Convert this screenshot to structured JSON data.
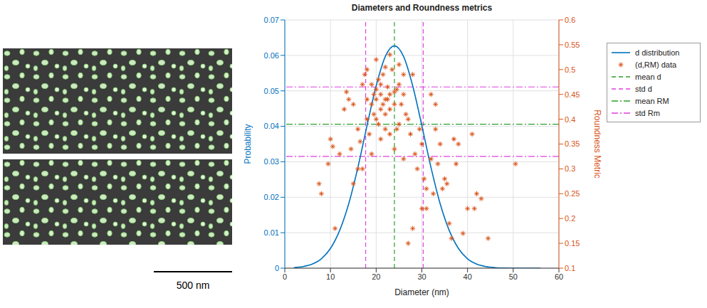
{
  "scale_bar_label": "500 nm",
  "chart_data": {
    "type": "line",
    "title": "Diameters and Roundness metrics",
    "x_label": "Diameter (nm)",
    "y_label": "Probability",
    "y2_label": "Roundness Metric",
    "xlim": [
      0,
      60
    ],
    "xticks": [
      0,
      10,
      20,
      30,
      40,
      50,
      60
    ],
    "ylim": [
      0,
      0.07
    ],
    "yticks": [
      0,
      0.01,
      0.02,
      0.03,
      0.04,
      0.05,
      0.06,
      0.07
    ],
    "y2lim": [
      0.1,
      0.6
    ],
    "y2ticks": [
      0.1,
      0.15,
      0.2,
      0.25,
      0.3,
      0.35,
      0.4,
      0.45,
      0.5,
      0.55,
      0.6
    ],
    "grid": true,
    "legend": "right",
    "series": [
      {
        "name": "d distribution",
        "type": "line",
        "color": "#0072bd",
        "line_style": "solid",
        "x": [
          2,
          4,
          6,
          8,
          10,
          12,
          14,
          16,
          18,
          20,
          22,
          24,
          26,
          28,
          30,
          32,
          34,
          36,
          38,
          40,
          42,
          44,
          46,
          48,
          50,
          52,
          54,
          56
        ],
        "values": [
          0.00016,
          0.00045,
          0.00115,
          0.00265,
          0.00557,
          0.0106,
          0.0182,
          0.0284,
          0.0402,
          0.0514,
          0.0597,
          0.0627,
          0.0597,
          0.0514,
          0.0402,
          0.0284,
          0.0182,
          0.0106,
          0.00557,
          0.00265,
          0.00115,
          0.00045,
          0.00016,
          5e-05,
          1e-05,
          0,
          0,
          0
        ]
      },
      {
        "name": "(d,RM) data",
        "type": "scatter",
        "axis": "y2",
        "marker": "asterisk",
        "color": "#d95319",
        "x": [
          7.5,
          8,
          9.5,
          10,
          10.5,
          11,
          12,
          13,
          13.5,
          14,
          15,
          14.5,
          15,
          16,
          16.5,
          17,
          17.5,
          18,
          18.5,
          19,
          19.5,
          20,
          20.5,
          21,
          21.5,
          22,
          22.5,
          23,
          23.5,
          24,
          24.5,
          25,
          25.5,
          26,
          26.5,
          27,
          27.5,
          28,
          28.5,
          29,
          29.5,
          30,
          30.5,
          31,
          32,
          32.5,
          33,
          33.5,
          34,
          34.5,
          35,
          35.5,
          36,
          36.5,
          37,
          37.5,
          38,
          39,
          40,
          41,
          41.5,
          42,
          43,
          44.5,
          50.5,
          27,
          28,
          30,
          31,
          32,
          33,
          17,
          16,
          18,
          19,
          20,
          21,
          22,
          23,
          24,
          25,
          26,
          22,
          23,
          21,
          20,
          19,
          23,
          24,
          22,
          21,
          20,
          25,
          26,
          18,
          19.5,
          22.5,
          21.5,
          24.5,
          20.5
        ],
        "values": [
          0.27,
          0.25,
          0.31,
          0.36,
          0.345,
          0.18,
          0.33,
          0.42,
          0.455,
          0.44,
          0.43,
          0.34,
          0.27,
          0.3,
          0.355,
          0.47,
          0.49,
          0.5,
          0.37,
          0.47,
          0.41,
          0.52,
          0.48,
          0.45,
          0.43,
          0.505,
          0.44,
          0.53,
          0.5,
          0.455,
          0.46,
          0.51,
          0.43,
          0.49,
          0.41,
          0.4,
          0.37,
          0.49,
          0.33,
          0.3,
          0.38,
          0.35,
          0.28,
          0.26,
          0.45,
          0.25,
          0.43,
          0.31,
          0.35,
          0.26,
          0.28,
          0.27,
          0.19,
          0.16,
          0.36,
          0.31,
          0.35,
          0.17,
          0.22,
          0.37,
          0.22,
          0.25,
          0.24,
          0.16,
          0.31,
          0.15,
          0.18,
          0.22,
          0.22,
          0.32,
          0.38,
          0.3,
          0.38,
          0.4,
          0.33,
          0.4,
          0.36,
          0.38,
          0.37,
          0.34,
          0.39,
          0.32,
          0.44,
          0.45,
          0.47,
          0.44,
          0.43,
          0.42,
          0.43,
          0.41,
          0.42,
          0.46,
          0.47,
          0.45,
          0.44,
          0.45,
          0.465,
          0.49,
          0.38,
          0.39
        ]
      }
    ],
    "reference_lines": [
      {
        "name": "mean d",
        "orientation": "vertical",
        "values": [
          24
        ],
        "color": "#2ca02c",
        "line_style": "dashed"
      },
      {
        "name": "std d",
        "orientation": "vertical",
        "values": [
          17.7,
          30.3
        ],
        "color": "#e040e0",
        "line_style": "dashed"
      },
      {
        "name": "mean RM",
        "orientation": "horizontal",
        "axis": "y2",
        "values": [
          0.39
        ],
        "color": "#2ca02c",
        "line_style": "dashdot"
      },
      {
        "name": "std Rm",
        "orientation": "horizontal",
        "axis": "y2",
        "values": [
          0.325,
          0.465
        ],
        "color": "#e040e0",
        "line_style": "dashdot"
      }
    ]
  }
}
